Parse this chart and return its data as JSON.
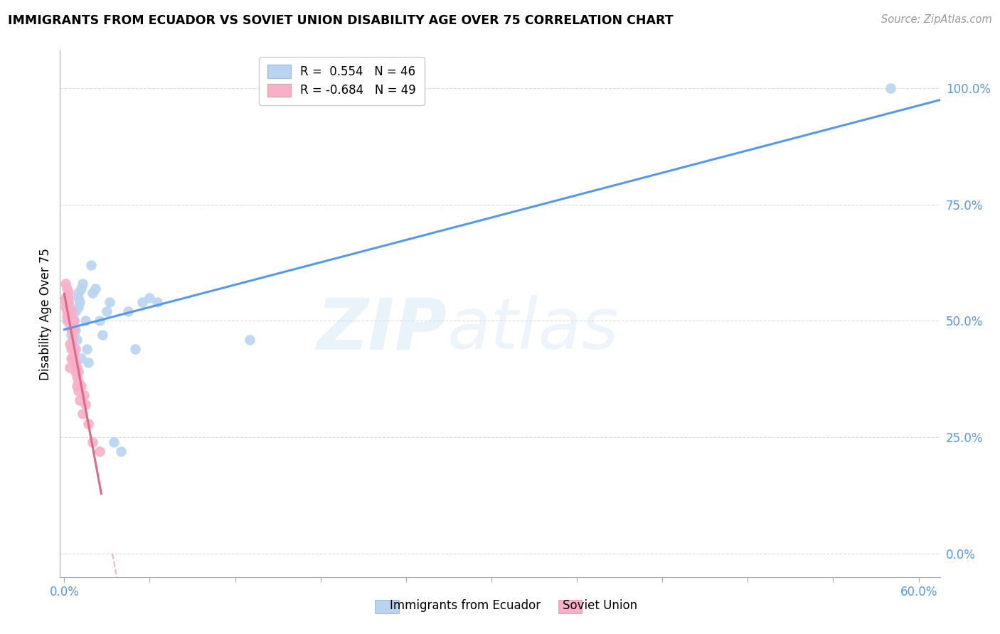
{
  "title": "IMMIGRANTS FROM ECUADOR VS SOVIET UNION DISABILITY AGE OVER 75 CORRELATION CHART",
  "source": "Source: ZipAtlas.com",
  "ylabel": "Disability Age Over 75",
  "legend_ecuador": "R =  0.554   N = 46",
  "legend_soviet": "R = -0.684   N = 49",
  "ecuador_color": "#b8d4f0",
  "ecuador_line_color": "#5599ee",
  "soviet_color": "#f8b0c8",
  "soviet_line_color": "#e06888",
  "ecuador_x": [
    0.002,
    0.003,
    0.003,
    0.004,
    0.004,
    0.004,
    0.005,
    0.005,
    0.005,
    0.006,
    0.006,
    0.006,
    0.006,
    0.007,
    0.007,
    0.007,
    0.008,
    0.008,
    0.008,
    0.009,
    0.01,
    0.01,
    0.01,
    0.011,
    0.012,
    0.012,
    0.013,
    0.015,
    0.016,
    0.017,
    0.019,
    0.02,
    0.022,
    0.025,
    0.027,
    0.03,
    0.032,
    0.035,
    0.04,
    0.045,
    0.05,
    0.055,
    0.06,
    0.065,
    0.13,
    0.58
  ],
  "ecuador_y": [
    0.5,
    0.51,
    0.52,
    0.49,
    0.5,
    0.53,
    0.47,
    0.51,
    0.52,
    0.5,
    0.49,
    0.51,
    0.52,
    0.47,
    0.49,
    0.5,
    0.44,
    0.48,
    0.52,
    0.46,
    0.55,
    0.56,
    0.53,
    0.54,
    0.57,
    0.42,
    0.58,
    0.5,
    0.44,
    0.41,
    0.62,
    0.56,
    0.57,
    0.5,
    0.47,
    0.52,
    0.54,
    0.24,
    0.22,
    0.52,
    0.44,
    0.54,
    0.55,
    0.54,
    0.46,
    1.0
  ],
  "soviet_x": [
    0.001,
    0.001,
    0.001,
    0.001,
    0.002,
    0.002,
    0.002,
    0.002,
    0.002,
    0.003,
    0.003,
    0.003,
    0.003,
    0.003,
    0.003,
    0.003,
    0.004,
    0.004,
    0.004,
    0.005,
    0.005,
    0.005,
    0.005,
    0.005,
    0.005,
    0.006,
    0.006,
    0.006,
    0.007,
    0.007,
    0.007,
    0.007,
    0.008,
    0.008,
    0.008,
    0.009,
    0.009,
    0.009,
    0.01,
    0.01,
    0.01,
    0.011,
    0.012,
    0.013,
    0.014,
    0.015,
    0.017,
    0.02,
    0.025
  ],
  "soviet_y": [
    0.53,
    0.54,
    0.55,
    0.58,
    0.51,
    0.52,
    0.55,
    0.55,
    0.57,
    0.5,
    0.5,
    0.52,
    0.54,
    0.54,
    0.55,
    0.56,
    0.4,
    0.45,
    0.51,
    0.42,
    0.44,
    0.48,
    0.5,
    0.52,
    0.52,
    0.42,
    0.44,
    0.46,
    0.41,
    0.43,
    0.48,
    0.5,
    0.39,
    0.41,
    0.44,
    0.36,
    0.38,
    0.4,
    0.35,
    0.37,
    0.39,
    0.33,
    0.36,
    0.3,
    0.34,
    0.32,
    0.28,
    0.24,
    0.22
  ],
  "xlim": [
    -0.003,
    0.615
  ],
  "ylim": [
    -0.05,
    1.08
  ],
  "ytick_values": [
    0.0,
    0.25,
    0.5,
    0.75,
    1.0
  ],
  "ytick_labels": [
    "0.0%",
    "25.0%",
    "50.0%",
    "75.0%",
    "100.0%"
  ],
  "background_color": "#ffffff",
  "grid_color": "#dddddd"
}
